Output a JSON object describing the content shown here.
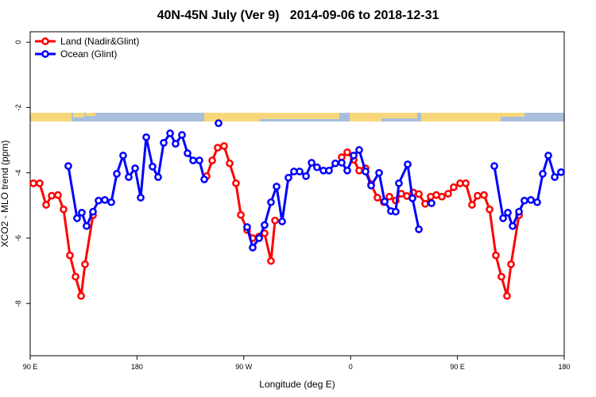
{
  "chart_data": {
    "type": "line",
    "title": "40N-45N July (Ver 9)   2014-09-06 to 2018-12-31",
    "x_label": "Longitude (deg E)",
    "y_label": "XCO2 - MLO trend (ppm)",
    "xlim": [
      90,
      540
    ],
    "ylim": [
      -9.6,
      0.32
    ],
    "xticks": [
      {
        "value": 90,
        "label": "90 E"
      },
      180,
      {
        "value": 270,
        "label": "90 W"
      },
      0,
      {
        "value": 450,
        "label": "90 E"
      },
      {
        "value": 540,
        "label": "180"
      }
    ],
    "yticks": [
      0,
      -2,
      -4,
      -6,
      -8
    ],
    "legend": "top-left",
    "series": [
      {
        "name": "Land (Nadir&Glint)",
        "color": "#ff0000",
        "x": [
          92.7,
          98.0,
          103.4,
          108.1,
          113.4,
          118.1,
          123.5,
          128.2,
          132.9,
          136.2,
          142.9,
          null,
          238.7,
          243.4,
          248.0,
          253.4,
          258.1,
          263.4,
          267.5,
          272.8,
          277.5,
          282.9,
          287.5,
          292.9,
          296.3,
          null,
          352.5,
          357.2,
          362.6,
          367.2,
          372.6,
          377.3,
          382.6,
          388.0,
          392.7,
          398.0,
          402.7,
          407.4,
          412.8,
          417.5,
          422.8,
          427.5,
          432.2,
          436.9,
          442.2,
          446.9,
          452.3,
          457.0,
          462.3,
          467.0,
          472.4,
          477.1,
          482.4,
          487.1,
          491.8,
          495.2,
          501.9
        ],
        "values": [
          -4.32,
          -4.32,
          -4.98,
          -4.7,
          -4.68,
          -5.12,
          -6.53,
          -7.18,
          -7.77,
          -6.8,
          -5.3,
          null,
          -4.1,
          -3.62,
          -3.23,
          -3.18,
          -3.71,
          -4.32,
          -5.29,
          -5.75,
          -6.0,
          -5.95,
          -5.85,
          -6.7,
          -5.46,
          null,
          -3.52,
          -3.37,
          -3.6,
          -3.93,
          -3.86,
          -4.35,
          -4.76,
          -4.9,
          -4.73,
          -4.85,
          -4.64,
          -4.71,
          -4.6,
          -4.65,
          -4.95,
          -4.73,
          -4.68,
          -4.73,
          -4.64,
          -4.44,
          -4.32,
          -4.32,
          -4.98,
          -4.7,
          -4.68,
          -5.12,
          -6.53,
          -7.18,
          -7.77,
          -6.8,
          -5.3
        ]
      },
      {
        "name": "Ocean (Glint)",
        "color": "#0000ff",
        "x": [
          122.1,
          129.5,
          133.5,
          137.5,
          142.9,
          147.6,
          152.9,
          158.3,
          163.0,
          168.3,
          173.0,
          178.4,
          183.1,
          187.8,
          193.1,
          197.8,
          202.5,
          207.9,
          212.5,
          217.9,
          222.6,
          227.3,
          232.6,
          236.7,
          null,
          248.7,
          null,
          272.8,
          277.5,
          282.9,
          287.5,
          292.9,
          297.6,
          302.3,
          307.6,
          312.3,
          317.0,
          322.4,
          327.1,
          331.7,
          337.1,
          341.8,
          347.1,
          352.5,
          357.2,
          362.6,
          367.2,
          372.6,
          377.3,
          384.0,
          388.7,
          394.0,
          398.0,
          400.7,
          408.1,
          412.1,
          417.5,
          null,
          428.2,
          null,
          481.1,
          488.5,
          492.5,
          496.5,
          501.9,
          506.5,
          511.9,
          517.2,
          521.9,
          526.6,
          532.0,
          537.3
        ],
        "values": [
          -3.79,
          -5.39,
          -5.22,
          -5.63,
          -5.19,
          -4.85,
          -4.83,
          -4.9,
          -4.03,
          -3.47,
          -4.13,
          -3.86,
          -4.76,
          -2.91,
          -3.81,
          -4.13,
          -3.08,
          -2.79,
          -3.11,
          -2.84,
          -3.4,
          -3.62,
          -3.62,
          -4.2,
          null,
          -2.48,
          null,
          -5.66,
          -6.29,
          -6.0,
          -5.6,
          -4.9,
          -4.42,
          -5.49,
          -4.15,
          -3.96,
          -3.96,
          -4.1,
          -3.69,
          -3.83,
          -3.93,
          -3.93,
          -3.71,
          -3.69,
          -3.93,
          -3.47,
          -3.3,
          -3.96,
          -4.39,
          -4.0,
          -4.88,
          -5.17,
          -5.19,
          -4.32,
          -3.74,
          -4.78,
          -5.73,
          null,
          -4.93,
          null,
          -3.79,
          -5.39,
          -5.22,
          -5.63,
          -5.19,
          -4.85,
          -4.83,
          -4.9,
          -4.03,
          -3.47,
          -4.13,
          -3.98
        ]
      }
    ]
  }
}
